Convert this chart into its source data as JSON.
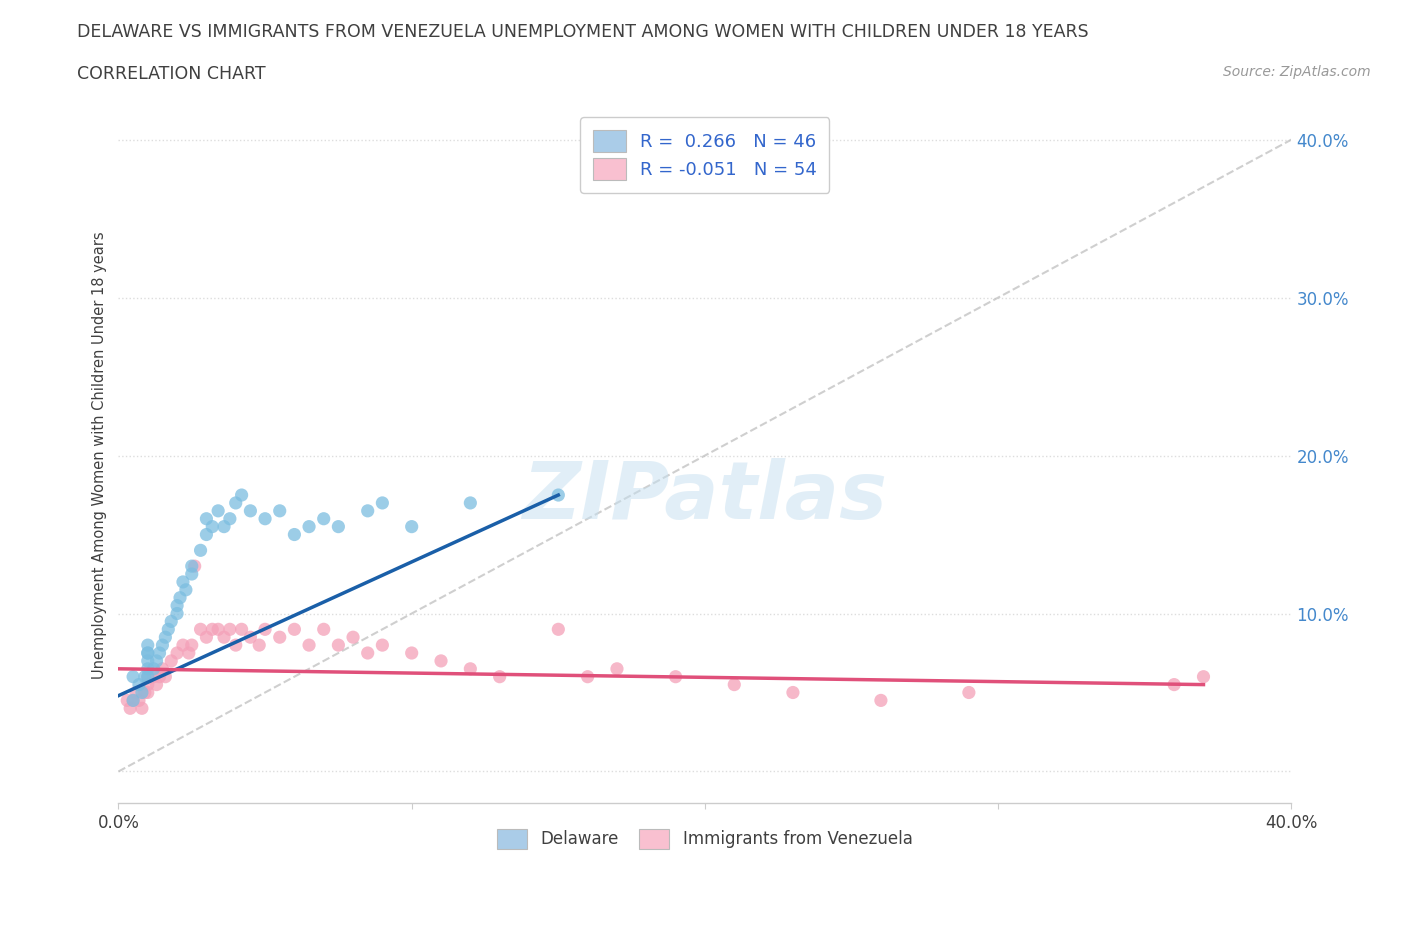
{
  "title": "DELAWARE VS IMMIGRANTS FROM VENEZUELA UNEMPLOYMENT AMONG WOMEN WITH CHILDREN UNDER 18 YEARS",
  "subtitle": "CORRELATION CHART",
  "source": "Source: ZipAtlas.com",
  "ylabel": "Unemployment Among Women with Children Under 18 years",
  "watermark": "ZIPatlas",
  "legend_entry1": "R =  0.266   N = 46",
  "legend_entry2": "R = -0.051   N = 54",
  "legend_label1": "Delaware",
  "legend_label2": "Immigrants from Venezuela",
  "xmin": 0.0,
  "xmax": 0.4,
  "ymin": -0.02,
  "ymax": 0.42,
  "yticks": [
    0.0,
    0.1,
    0.2,
    0.3,
    0.4
  ],
  "ytick_labels": [
    "",
    "10.0%",
    "20.0%",
    "30.0%",
    "40.0%"
  ],
  "blue_color": "#7bbde0",
  "pink_color": "#f4a0b8",
  "blue_line_color": "#1a5fa8",
  "pink_line_color": "#e0507a",
  "ref_line_color": "#bbbbbb",
  "title_color": "#404040",
  "source_color": "#999999",
  "grid_color": "#dddddd",
  "blue_legend_color": "#aacce8",
  "pink_legend_color": "#f9c0d0",
  "delaware_x": [
    0.005,
    0.005,
    0.007,
    0.008,
    0.009,
    0.01,
    0.01,
    0.01,
    0.01,
    0.01,
    0.01,
    0.012,
    0.013,
    0.014,
    0.015,
    0.016,
    0.017,
    0.018,
    0.02,
    0.02,
    0.021,
    0.022,
    0.023,
    0.025,
    0.025,
    0.028,
    0.03,
    0.03,
    0.032,
    0.034,
    0.036,
    0.038,
    0.04,
    0.042,
    0.045,
    0.05,
    0.055,
    0.06,
    0.065,
    0.07,
    0.075,
    0.085,
    0.09,
    0.1,
    0.12,
    0.15
  ],
  "delaware_y": [
    0.06,
    0.045,
    0.055,
    0.05,
    0.06,
    0.065,
    0.07,
    0.075,
    0.08,
    0.075,
    0.06,
    0.065,
    0.07,
    0.075,
    0.08,
    0.085,
    0.09,
    0.095,
    0.1,
    0.105,
    0.11,
    0.12,
    0.115,
    0.125,
    0.13,
    0.14,
    0.15,
    0.16,
    0.155,
    0.165,
    0.155,
    0.16,
    0.17,
    0.175,
    0.165,
    0.16,
    0.165,
    0.15,
    0.155,
    0.16,
    0.155,
    0.165,
    0.17,
    0.155,
    0.17,
    0.175
  ],
  "venezuela_x": [
    0.003,
    0.004,
    0.005,
    0.006,
    0.007,
    0.008,
    0.009,
    0.01,
    0.01,
    0.01,
    0.012,
    0.013,
    0.014,
    0.015,
    0.016,
    0.018,
    0.02,
    0.022,
    0.024,
    0.025,
    0.026,
    0.028,
    0.03,
    0.032,
    0.034,
    0.036,
    0.038,
    0.04,
    0.042,
    0.045,
    0.048,
    0.05,
    0.055,
    0.06,
    0.065,
    0.07,
    0.075,
    0.08,
    0.085,
    0.09,
    0.1,
    0.11,
    0.12,
    0.13,
    0.15,
    0.16,
    0.17,
    0.19,
    0.21,
    0.23,
    0.26,
    0.29,
    0.36,
    0.37
  ],
  "venezuela_y": [
    0.045,
    0.04,
    0.045,
    0.05,
    0.045,
    0.04,
    0.05,
    0.06,
    0.055,
    0.05,
    0.06,
    0.055,
    0.06,
    0.065,
    0.06,
    0.07,
    0.075,
    0.08,
    0.075,
    0.08,
    0.13,
    0.09,
    0.085,
    0.09,
    0.09,
    0.085,
    0.09,
    0.08,
    0.09,
    0.085,
    0.08,
    0.09,
    0.085,
    0.09,
    0.08,
    0.09,
    0.08,
    0.085,
    0.075,
    0.08,
    0.075,
    0.07,
    0.065,
    0.06,
    0.09,
    0.06,
    0.065,
    0.06,
    0.055,
    0.05,
    0.045,
    0.05,
    0.055,
    0.06
  ],
  "del_line_x0": 0.0,
  "del_line_y0": 0.048,
  "del_line_x1": 0.15,
  "del_line_y1": 0.175,
  "ven_line_x0": 0.0,
  "ven_line_y0": 0.065,
  "ven_line_x1": 0.37,
  "ven_line_y1": 0.055
}
